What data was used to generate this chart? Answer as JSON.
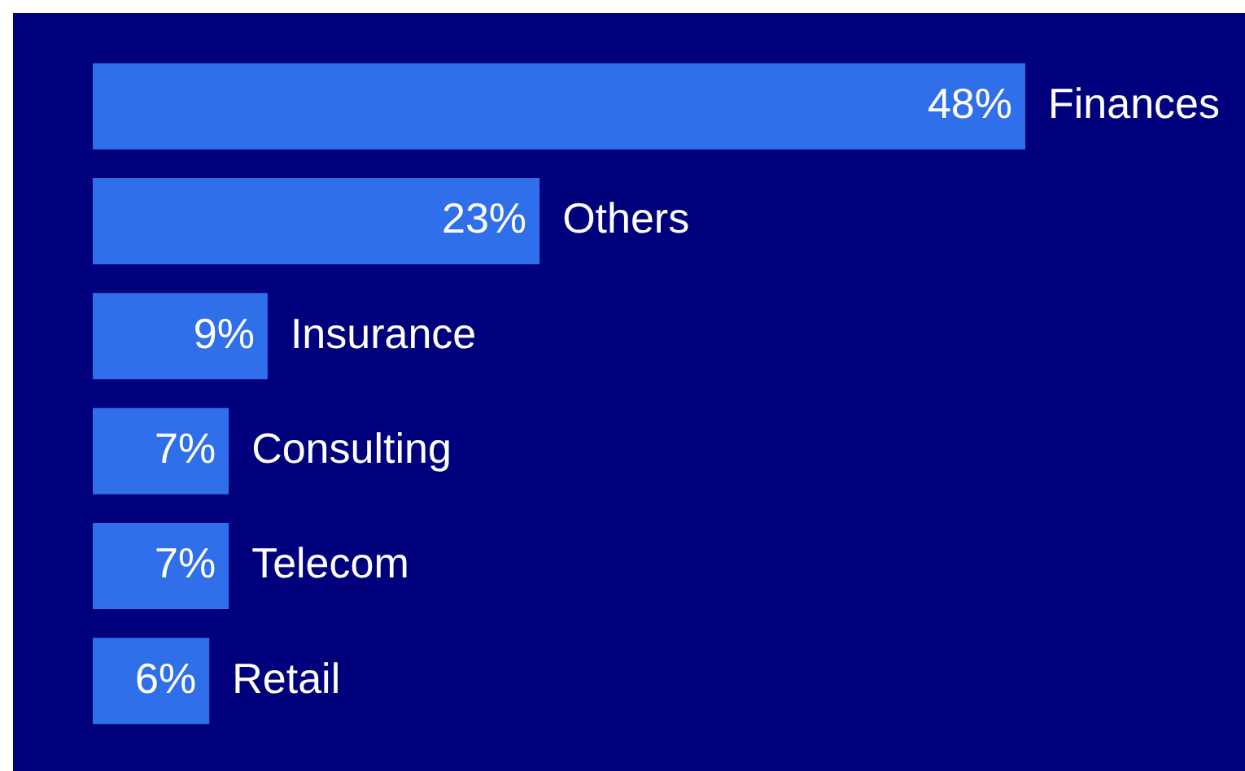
{
  "chart_data": {
    "type": "bar",
    "orientation": "horizontal",
    "categories": [
      "Finances",
      "Others",
      "Insurance",
      "Consulting",
      "Telecom",
      "Retail"
    ],
    "values": [
      48,
      23,
      9,
      7,
      7,
      6
    ],
    "value_labels": [
      "48%",
      "23%",
      "9%",
      "7%",
      "7%",
      "6%"
    ],
    "color": "#2f6fea",
    "grid": false,
    "legend": false,
    "tick_labels": false
  }
}
